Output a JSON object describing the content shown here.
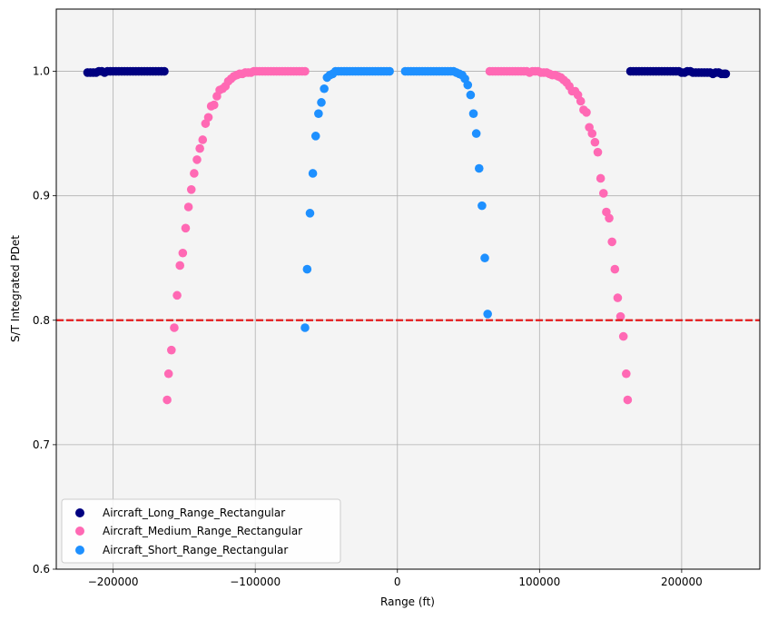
{
  "chart_data": {
    "type": "scatter",
    "title": "",
    "xlabel": "Range (ft)",
    "ylabel": "S/T Integrated PDet",
    "xlim": [
      -240000,
      255000
    ],
    "ylim": [
      0.6,
      1.05
    ],
    "x_ticks": [
      -200000,
      -100000,
      0,
      100000,
      200000
    ],
    "x_tick_labels": [
      "−200000",
      "−100000",
      "0",
      "100000",
      "200000"
    ],
    "y_ticks": [
      0.6,
      0.7,
      0.8,
      0.9,
      1.0
    ],
    "y_tick_labels": [
      "0.6",
      "0.7",
      "0.8",
      "0.9",
      "1.0"
    ],
    "grid": true,
    "legend_position": "lower-left",
    "background_color": "#f4f4f4",
    "threshold_line": {
      "y": 0.8,
      "color": "#e41a1c",
      "style": "dashed"
    },
    "series": [
      {
        "name": "Aircraft_Long_Range_Rectangular",
        "color": "#000080",
        "points": [
          [
            -218000,
            0.999
          ],
          [
            -216000,
            0.999
          ],
          [
            -214000,
            0.999
          ],
          [
            -212000,
            0.999
          ],
          [
            -210000,
            1.0
          ],
          [
            -208000,
            1.0
          ],
          [
            -206000,
            0.999
          ],
          [
            -204000,
            1.0
          ],
          [
            -202000,
            1.0
          ],
          [
            -200000,
            1.0
          ],
          [
            -198000,
            1.0
          ],
          [
            -196000,
            1.0
          ],
          [
            -194000,
            1.0
          ],
          [
            -192000,
            1.0
          ],
          [
            -190000,
            1.0
          ],
          [
            -188000,
            1.0
          ],
          [
            -186000,
            1.0
          ],
          [
            -184000,
            1.0
          ],
          [
            -182000,
            1.0
          ],
          [
            -180000,
            1.0
          ],
          [
            -178000,
            1.0
          ],
          [
            -176000,
            1.0
          ],
          [
            -174000,
            1.0
          ],
          [
            -172000,
            1.0
          ],
          [
            -170000,
            1.0
          ],
          [
            -168000,
            1.0
          ],
          [
            -166000,
            1.0
          ],
          [
            -164000,
            1.0
          ],
          [
            164000,
            1.0
          ],
          [
            166000,
            1.0
          ],
          [
            168000,
            1.0
          ],
          [
            170000,
            1.0
          ],
          [
            172000,
            1.0
          ],
          [
            174000,
            1.0
          ],
          [
            176000,
            1.0
          ],
          [
            178000,
            1.0
          ],
          [
            180000,
            1.0
          ],
          [
            182000,
            1.0
          ],
          [
            184000,
            1.0
          ],
          [
            186000,
            1.0
          ],
          [
            188000,
            1.0
          ],
          [
            190000,
            1.0
          ],
          [
            192000,
            1.0
          ],
          [
            194000,
            1.0
          ],
          [
            196000,
            1.0
          ],
          [
            198000,
            1.0
          ],
          [
            200000,
            0.999
          ],
          [
            202000,
            0.999
          ],
          [
            204000,
            1.0
          ],
          [
            206000,
            1.0
          ],
          [
            208000,
            0.999
          ],
          [
            210000,
            0.999
          ],
          [
            212000,
            0.999
          ],
          [
            214000,
            0.999
          ],
          [
            216000,
            0.999
          ],
          [
            218000,
            0.999
          ],
          [
            220000,
            0.999
          ],
          [
            222000,
            0.998
          ],
          [
            224000,
            0.999
          ],
          [
            226000,
            0.999
          ],
          [
            228000,
            0.998
          ],
          [
            230000,
            0.998
          ],
          [
            231000,
            0.998
          ]
        ]
      },
      {
        "name": "Aircraft_Medium_Range_Rectangular",
        "color": "#ff69b4",
        "points": [
          [
            -162000,
            0.736
          ],
          [
            -161000,
            0.757
          ],
          [
            -159000,
            0.776
          ],
          [
            -157000,
            0.794
          ],
          [
            -155000,
            0.82
          ],
          [
            -153000,
            0.844
          ],
          [
            -151000,
            0.854
          ],
          [
            -149000,
            0.874
          ],
          [
            -147000,
            0.891
          ],
          [
            -145000,
            0.905
          ],
          [
            -143000,
            0.918
          ],
          [
            -141000,
            0.929
          ],
          [
            -139000,
            0.938
          ],
          [
            -137000,
            0.945
          ],
          [
            -135000,
            0.958
          ],
          [
            -133000,
            0.963
          ],
          [
            -131000,
            0.972
          ],
          [
            -129000,
            0.973
          ],
          [
            -127000,
            0.98
          ],
          [
            -125000,
            0.985
          ],
          [
            -123000,
            0.986
          ],
          [
            -121000,
            0.988
          ],
          [
            -119000,
            0.992
          ],
          [
            -117000,
            0.994
          ],
          [
            -115000,
            0.996
          ],
          [
            -113000,
            0.997
          ],
          [
            -111000,
            0.998
          ],
          [
            -109000,
            0.998
          ],
          [
            -107000,
            0.999
          ],
          [
            -105000,
            0.999
          ],
          [
            -103000,
            0.999
          ],
          [
            -101000,
            1.0
          ],
          [
            -99000,
            1.0
          ],
          [
            -97000,
            1.0
          ],
          [
            -95000,
            1.0
          ],
          [
            -93000,
            1.0
          ],
          [
            -91000,
            1.0
          ],
          [
            -89000,
            1.0
          ],
          [
            -87000,
            1.0
          ],
          [
            -85000,
            1.0
          ],
          [
            -83000,
            1.0
          ],
          [
            -81000,
            1.0
          ],
          [
            -79000,
            1.0
          ],
          [
            -77000,
            1.0
          ],
          [
            -75000,
            1.0
          ],
          [
            -73000,
            1.0
          ],
          [
            -71000,
            1.0
          ],
          [
            -69000,
            1.0
          ],
          [
            -67000,
            1.0
          ],
          [
            -65000,
            1.0
          ],
          [
            65000,
            1.0
          ],
          [
            67000,
            1.0
          ],
          [
            69000,
            1.0
          ],
          [
            71000,
            1.0
          ],
          [
            73000,
            1.0
          ],
          [
            75000,
            1.0
          ],
          [
            77000,
            1.0
          ],
          [
            79000,
            1.0
          ],
          [
            81000,
            1.0
          ],
          [
            83000,
            1.0
          ],
          [
            85000,
            1.0
          ],
          [
            87000,
            1.0
          ],
          [
            89000,
            1.0
          ],
          [
            91000,
            1.0
          ],
          [
            93000,
            0.999
          ],
          [
            95000,
            1.0
          ],
          [
            97000,
            1.0
          ],
          [
            99000,
            1.0
          ],
          [
            101000,
            0.999
          ],
          [
            103000,
            0.999
          ],
          [
            105000,
            0.999
          ],
          [
            107000,
            0.998
          ],
          [
            109000,
            0.997
          ],
          [
            111000,
            0.997
          ],
          [
            113000,
            0.996
          ],
          [
            115000,
            0.995
          ],
          [
            117000,
            0.993
          ],
          [
            119000,
            0.991
          ],
          [
            121000,
            0.988
          ],
          [
            123000,
            0.984
          ],
          [
            125000,
            0.984
          ],
          [
            127000,
            0.981
          ],
          [
            129000,
            0.976
          ],
          [
            131000,
            0.969
          ],
          [
            133000,
            0.967
          ],
          [
            135000,
            0.955
          ],
          [
            137000,
            0.95
          ],
          [
            139000,
            0.943
          ],
          [
            141000,
            0.935
          ],
          [
            143000,
            0.914
          ],
          [
            145000,
            0.902
          ],
          [
            147000,
            0.887
          ],
          [
            149000,
            0.882
          ],
          [
            151000,
            0.863
          ],
          [
            153000,
            0.841
          ],
          [
            155000,
            0.818
          ],
          [
            157000,
            0.803
          ],
          [
            159000,
            0.787
          ],
          [
            161000,
            0.757
          ],
          [
            162000,
            0.736
          ]
        ]
      },
      {
        "name": "Aircraft_Short_Range_Rectangular",
        "color": "#1e90ff",
        "points": [
          [
            -65000,
            0.794
          ],
          [
            -63500,
            0.841
          ],
          [
            -61500,
            0.886
          ],
          [
            -59500,
            0.918
          ],
          [
            -57500,
            0.948
          ],
          [
            -55500,
            0.966
          ],
          [
            -53500,
            0.975
          ],
          [
            -51500,
            0.986
          ],
          [
            -49500,
            0.995
          ],
          [
            -47500,
            0.997
          ],
          [
            -45500,
            0.998
          ],
          [
            -43500,
            1.0
          ],
          [
            -41500,
            1.0
          ],
          [
            -39500,
            1.0
          ],
          [
            -37500,
            1.0
          ],
          [
            -35500,
            1.0
          ],
          [
            -33500,
            1.0
          ],
          [
            -31500,
            1.0
          ],
          [
            -29500,
            1.0
          ],
          [
            -27500,
            1.0
          ],
          [
            -25500,
            1.0
          ],
          [
            -23500,
            1.0
          ],
          [
            -21500,
            1.0
          ],
          [
            -19500,
            1.0
          ],
          [
            -17500,
            1.0
          ],
          [
            -15500,
            1.0
          ],
          [
            -13500,
            1.0
          ],
          [
            -11500,
            1.0
          ],
          [
            -9500,
            1.0
          ],
          [
            -7500,
            1.0
          ],
          [
            -5500,
            1.0
          ],
          [
            5500,
            1.0
          ],
          [
            7500,
            1.0
          ],
          [
            9500,
            1.0
          ],
          [
            11500,
            1.0
          ],
          [
            13500,
            1.0
          ],
          [
            15500,
            1.0
          ],
          [
            17500,
            1.0
          ],
          [
            19500,
            1.0
          ],
          [
            21500,
            1.0
          ],
          [
            23500,
            1.0
          ],
          [
            25500,
            1.0
          ],
          [
            27500,
            1.0
          ],
          [
            29500,
            1.0
          ],
          [
            31500,
            1.0
          ],
          [
            33500,
            1.0
          ],
          [
            35500,
            1.0
          ],
          [
            37500,
            1.0
          ],
          [
            39500,
            1.0
          ],
          [
            41500,
            0.999
          ],
          [
            43500,
            0.998
          ],
          [
            45500,
            0.997
          ],
          [
            47500,
            0.994
          ],
          [
            49500,
            0.989
          ],
          [
            51500,
            0.981
          ],
          [
            53500,
            0.966
          ],
          [
            55500,
            0.95
          ],
          [
            57500,
            0.922
          ],
          [
            59500,
            0.892
          ],
          [
            61500,
            0.85
          ],
          [
            63500,
            0.805
          ]
        ]
      }
    ]
  }
}
